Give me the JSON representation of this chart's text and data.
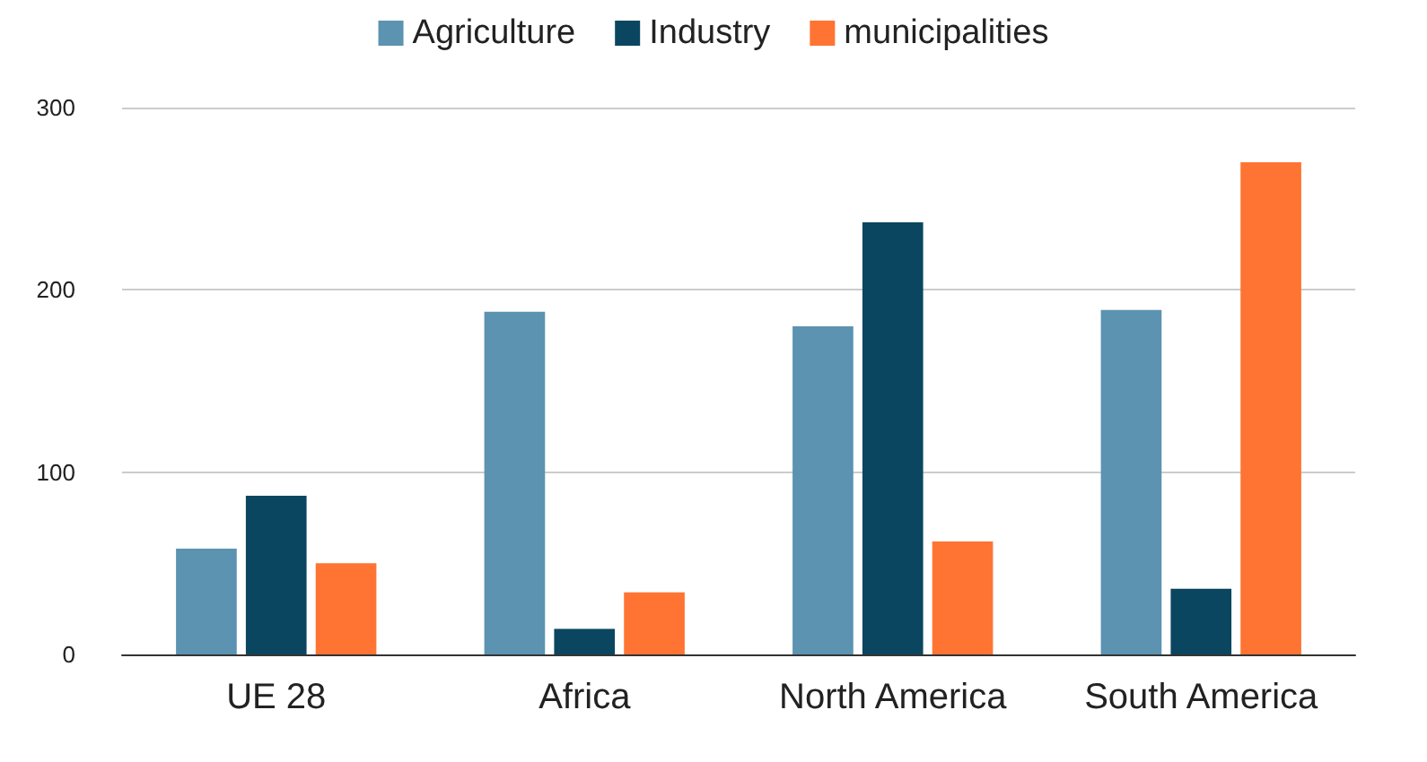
{
  "chart_data": {
    "type": "bar",
    "categories": [
      "UE 28",
      "Africa",
      "North America",
      "South America"
    ],
    "series": [
      {
        "name": "Agriculture",
        "color": "#5b93b1",
        "values": [
          58,
          188,
          180,
          189
        ]
      },
      {
        "name": "Industry",
        "color": "#0a4660",
        "values": [
          87,
          14,
          237,
          36
        ]
      },
      {
        "name": "municipalities",
        "color": "#ff7433",
        "values": [
          50,
          34,
          62,
          270
        ]
      }
    ],
    "ylim": [
      0,
      300
    ],
    "yticks": [
      0,
      100,
      200,
      300
    ],
    "grid": "y",
    "legend": "top"
  }
}
